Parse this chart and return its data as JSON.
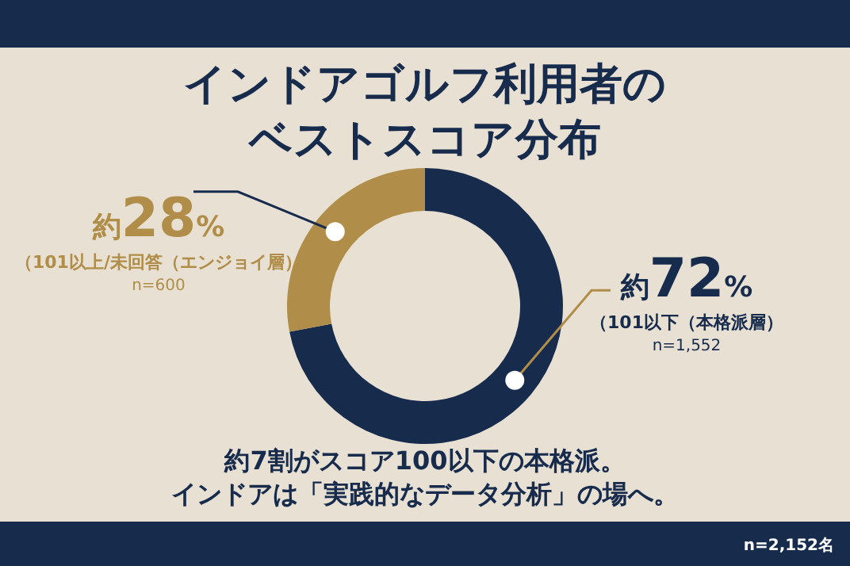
{
  "chart_data": {
    "type": "donut",
    "title": "インドアゴルフ利用者の",
    "subtitle": "ベストスコア分布",
    "categories": [
      "（101以下（本格派層）",
      "（101以上/未回答（エンジョイ層）"
    ],
    "values": [
      72,
      28
    ],
    "colors": [
      "#172b4d",
      "#b08d48"
    ],
    "value_labels": [
      "約72%",
      "約28%"
    ],
    "annotations": [
      "n=1,552",
      "n=600",
      "約7割がスコア100以下の本格派。",
      "インドアは「実践的なデータ分析」の場へ。",
      "n=2,152名"
    ]
  }
}
